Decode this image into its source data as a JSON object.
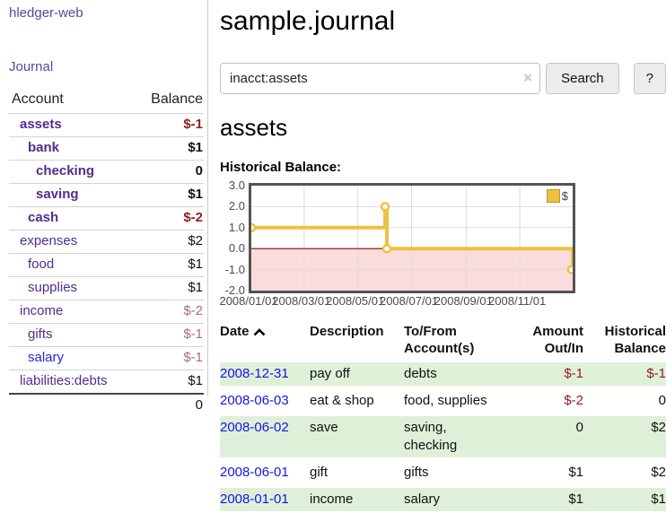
{
  "app": {
    "title": "hledger-web"
  },
  "sidebar": {
    "nav_journal": "Journal",
    "table": {
      "col_account": "Account",
      "col_balance": "Balance",
      "rows": [
        {
          "name": "assets",
          "balance": "$-1",
          "indent": 1,
          "bold": true,
          "balance_style": "neg"
        },
        {
          "name": "bank",
          "balance": "$1",
          "indent": 2,
          "bold": true,
          "balance_style": "pos"
        },
        {
          "name": "checking",
          "balance": "0",
          "indent": 3,
          "bold": true,
          "balance_style": "pos"
        },
        {
          "name": "saving",
          "balance": "$1",
          "indent": 3,
          "bold": true,
          "balance_style": "pos"
        },
        {
          "name": "cash",
          "balance": "$-2",
          "indent": 2,
          "bold": true,
          "balance_style": "neg"
        },
        {
          "name": "expenses",
          "balance": "$2",
          "indent": 1,
          "bold": false,
          "balance_style": "pos"
        },
        {
          "name": "food",
          "balance": "$1",
          "indent": 2,
          "bold": false,
          "balance_style": "pos"
        },
        {
          "name": "supplies",
          "balance": "$1",
          "indent": 2,
          "bold": false,
          "balance_style": "pos"
        },
        {
          "name": "income",
          "balance": "$-2",
          "indent": 1,
          "bold": false,
          "balance_style": "neg-light"
        },
        {
          "name": "gifts",
          "balance": "$-1",
          "indent": 2,
          "bold": false,
          "balance_style": "neg-light"
        },
        {
          "name": "salary",
          "balance": "$-1",
          "indent": 2,
          "bold": false,
          "balance_style": "neg-light",
          "link_style": "blue"
        },
        {
          "name": "liabilities:debts",
          "balance": "$1",
          "indent": 1,
          "bold": false,
          "balance_style": "pos"
        }
      ],
      "total": "0"
    }
  },
  "header": {
    "title": "sample.journal",
    "search": {
      "value": "inacct:assets",
      "clear_icon": "×",
      "button": "Search",
      "help": "?"
    }
  },
  "account_page": {
    "heading": "assets",
    "chart_label": "Historical Balance:"
  },
  "chart_data": {
    "type": "line",
    "step": true,
    "title": "Historical Balance",
    "legend": [
      {
        "name": "$",
        "color": "#edc240"
      }
    ],
    "legend_position": "top-right",
    "grid": true,
    "ylim": [
      -2,
      3
    ],
    "y_ticks": [
      "3.0",
      "2.0",
      "1.0",
      "0.0",
      "-1.0",
      "-2.0"
    ],
    "x_start": "2008-01-01",
    "x_end": "2008-12-31",
    "x_ticks": [
      "2008/01/01",
      "2008/03/01",
      "2008/05/01",
      "2008/07/01",
      "2008/09/01",
      "2008/11/01"
    ],
    "series": [
      {
        "name": "$",
        "color": "#edc240",
        "points": [
          [
            "2008-01-01",
            1
          ],
          [
            "2008-06-01",
            2
          ],
          [
            "2008-06-03",
            0
          ],
          [
            "2008-12-31",
            -1
          ]
        ]
      }
    ],
    "negative_region_fill": "#fbdcdc",
    "zero_line_color": "#8b0000",
    "gridline_color": "#dcdcdc",
    "border_color": "#545454"
  },
  "register": {
    "headers": {
      "date": "Date",
      "description": "Description",
      "accounts": "To/From Account(s)",
      "amount": "Amount Out/In",
      "balance": "Historical Balance"
    },
    "rows": [
      {
        "date": "2008-12-31",
        "description": "pay off",
        "accounts": "debts",
        "amount": "$-1",
        "balance": "$-1",
        "amount_neg": true,
        "balance_neg": true,
        "highlight": true
      },
      {
        "date": "2008-06-03",
        "description": "eat & shop",
        "accounts": "food, supplies",
        "amount": "$-2",
        "balance": "0",
        "amount_neg": true,
        "balance_neg": false,
        "highlight": false
      },
      {
        "date": "2008-06-02",
        "description": "save",
        "accounts": "saving, checking",
        "amount": "0",
        "balance": "$2",
        "amount_neg": false,
        "balance_neg": false,
        "highlight": true
      },
      {
        "date": "2008-06-01",
        "description": "gift",
        "accounts": "gifts",
        "amount": "$1",
        "balance": "$2",
        "amount_neg": false,
        "balance_neg": false,
        "highlight": false
      },
      {
        "date": "2008-01-01",
        "description": "income",
        "accounts": "salary",
        "amount": "$1",
        "balance": "$1",
        "amount_neg": false,
        "balance_neg": false,
        "highlight": true
      }
    ]
  }
}
